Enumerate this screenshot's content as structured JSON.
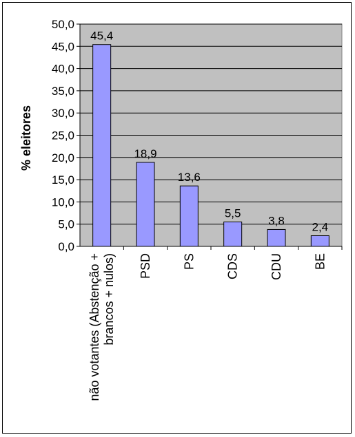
{
  "chart_data": {
    "type": "bar",
    "categories": [
      "não votantes (Abstenção + brancos + nulos)",
      "PSD",
      "PS",
      "CDS",
      "CDU",
      "BE"
    ],
    "category_lines": [
      [
        "não votantes (Abstenção +",
        "brancos + nulos)"
      ],
      [
        "PSD"
      ],
      [
        "PS"
      ],
      [
        "CDS"
      ],
      [
        "CDU"
      ],
      [
        "BE"
      ]
    ],
    "values": [
      45.4,
      18.9,
      13.6,
      5.5,
      3.8,
      2.4
    ],
    "value_labels": [
      "45,4",
      "18,9",
      "13,6",
      "5,5",
      "3,8",
      "2,4"
    ],
    "ylabel": "% eleitores",
    "ylim": [
      0,
      50
    ],
    "yticks": [
      0,
      5,
      10,
      15,
      20,
      25,
      30,
      35,
      40,
      45,
      50
    ],
    "ytick_labels": [
      "0,0",
      "5,0",
      "10,0",
      "15,0",
      "20,0",
      "25,0",
      "30,0",
      "35,0",
      "40,0",
      "45,0",
      "50,0"
    ],
    "grid": true,
    "legend": "none",
    "colors": {
      "bar_fill": "#9999FF",
      "bar_stroke": "#000000",
      "plot_background": "#C0C0C0",
      "gridline": "#000000"
    }
  }
}
